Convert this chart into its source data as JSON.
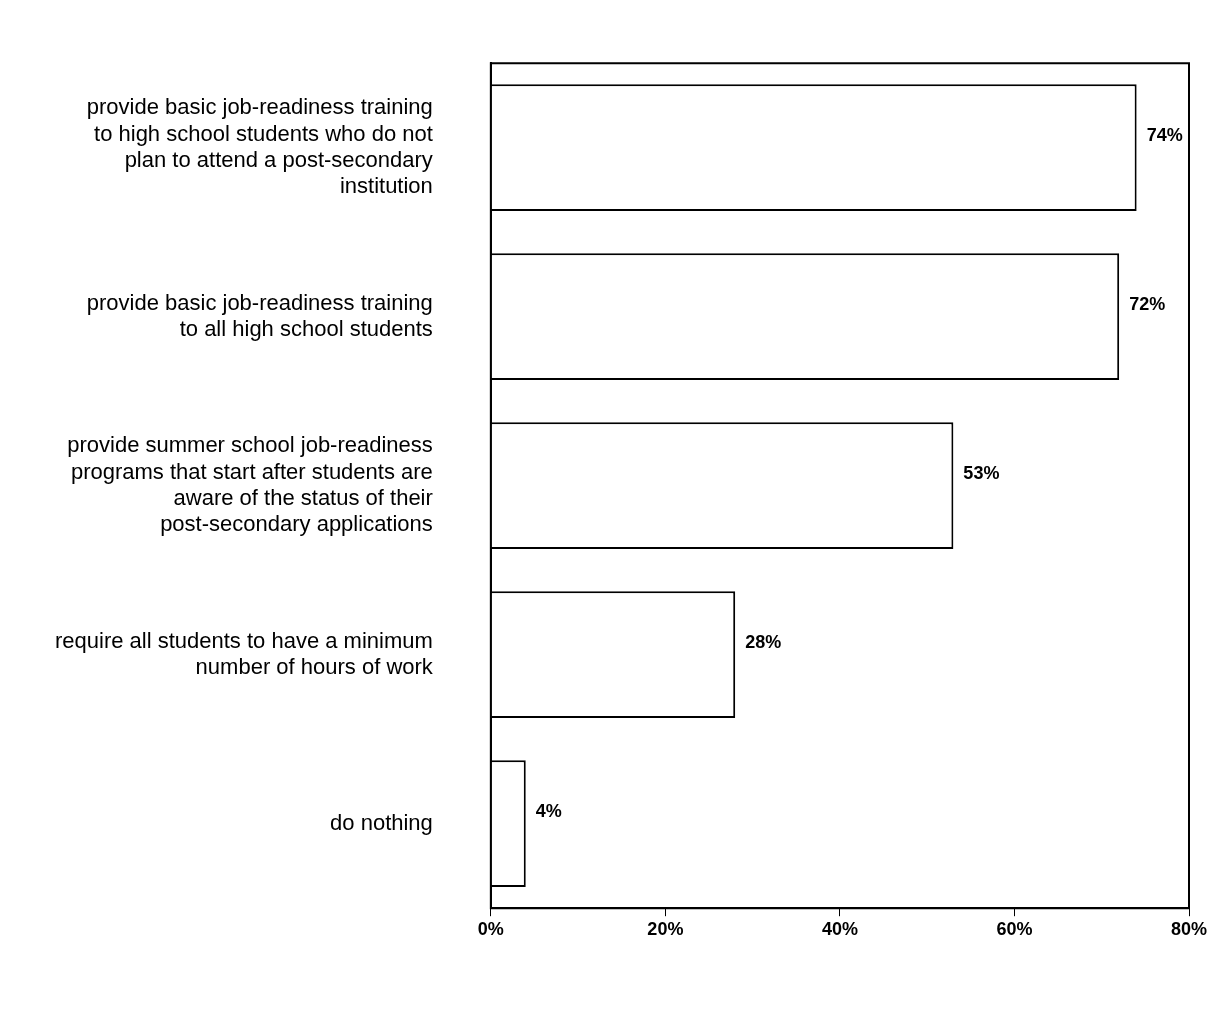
{
  "chart_data": {
    "type": "bar",
    "orientation": "horizontal",
    "categories": [
      "provide basic job-readiness training to high school students who do not plan to attend a post-secondary institution",
      "provide basic job-readiness training to all high school students",
      "provide summer school job-readiness programs that start after students are aware of the status of their post-secondary applications",
      "require all students to have a minimum number of hours of work",
      "do nothing"
    ],
    "values": [
      74,
      72,
      53,
      28,
      4
    ],
    "color": "#ffffff",
    "value_labels": [
      "74%",
      "72%",
      "53%",
      "28%",
      "4%"
    ],
    "xlim": [
      0,
      80
    ],
    "xticks": [
      {
        "value": 0,
        "label": "0%"
      },
      {
        "value": 20,
        "label": "20%"
      },
      {
        "value": 40,
        "label": "40%"
      },
      {
        "value": 60,
        "label": "60%"
      },
      {
        "value": 80,
        "label": "80%"
      }
    ],
    "grid": false,
    "legend": false
  }
}
